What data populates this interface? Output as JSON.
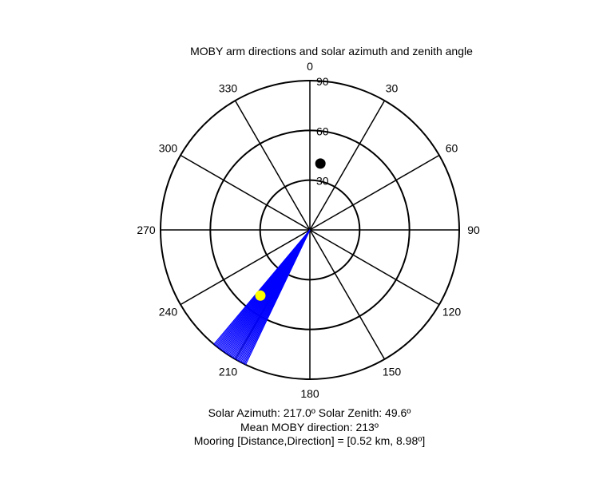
{
  "chart_data": {
    "type": "polar",
    "title": "MOBY arm directions and solar azimuth and zenith angle",
    "angle_ticks": [
      {
        "angle": 0,
        "label": "0"
      },
      {
        "angle": 30,
        "label": "30"
      },
      {
        "angle": 60,
        "label": "60"
      },
      {
        "angle": 90,
        "label": "90"
      },
      {
        "angle": 120,
        "label": "120"
      },
      {
        "angle": 150,
        "label": "150"
      },
      {
        "angle": 180,
        "label": "180"
      },
      {
        "angle": 210,
        "label": "210"
      },
      {
        "angle": 240,
        "label": "240"
      },
      {
        "angle": 270,
        "label": "270"
      },
      {
        "angle": 300,
        "label": "300"
      },
      {
        "angle": 330,
        "label": "330"
      }
    ],
    "radial_ticks": [
      {
        "value": 30,
        "label": "30"
      },
      {
        "value": 60,
        "label": "60"
      },
      {
        "value": 90,
        "label": "90"
      }
    ],
    "rmax": 90,
    "grid": true,
    "arm_lines": {
      "color": "#0000ff",
      "radius": 90,
      "azimuths": [
        205.5,
        206,
        206.5,
        207,
        207.5,
        208,
        208.5,
        209,
        209.5,
        210,
        210.5,
        211,
        211.5,
        212,
        212.5,
        213,
        213.5,
        214,
        214.5,
        215,
        215.5,
        216,
        216.5,
        217,
        217.5,
        218,
        218.5,
        219,
        219.5,
        220
      ]
    },
    "points": [
      {
        "name": "black-point",
        "azimuth": 9,
        "zenith": 40.5,
        "color": "#000000"
      },
      {
        "name": "sun-point",
        "azimuth": 217,
        "zenith": 49.6,
        "color": "#ffff00"
      }
    ]
  },
  "info": {
    "line1_azimuth": "Solar Azimuth: 217.0º   Solar Zenith: 49.6º",
    "line2": "Mean MOBY direction: 213º",
    "line3": "Mooring [Distance,Direction] = [0.52 km, 8.98º]"
  }
}
